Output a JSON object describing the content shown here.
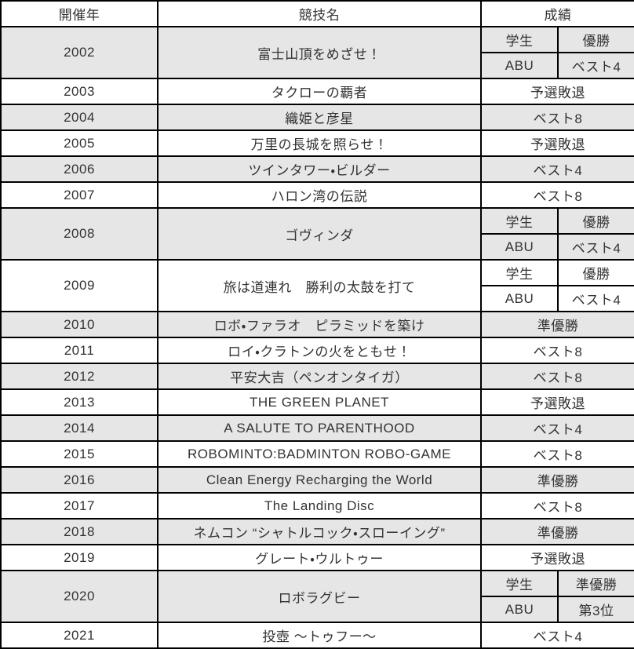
{
  "table": {
    "headers": {
      "year": "開催年",
      "competition": "競技名",
      "result": "成績"
    },
    "rows": [
      {
        "year": "2002",
        "competition": "富士山頂をめざせ！",
        "shaded": true,
        "results": [
          {
            "division": "学生",
            "result": "優勝"
          },
          {
            "division": "ABU",
            "result": "ベスト4"
          }
        ]
      },
      {
        "year": "2003",
        "competition": "タクローの覇者",
        "shaded": false,
        "result": "予選敗退"
      },
      {
        "year": "2004",
        "competition": "織姫と彦星",
        "shaded": true,
        "result": "ベスト8"
      },
      {
        "year": "2005",
        "competition": "万里の長城を照らせ！",
        "shaded": false,
        "result": "予選敗退"
      },
      {
        "year": "2006",
        "competition": "ツインタワー・ビルダー",
        "shaded": true,
        "result": "ベスト4"
      },
      {
        "year": "2007",
        "competition": "ハロン湾の伝説",
        "shaded": false,
        "result": "ベスト8"
      },
      {
        "year": "2008",
        "competition": "ゴヴィンダ",
        "shaded": true,
        "results": [
          {
            "division": "学生",
            "result": "優勝"
          },
          {
            "division": "ABU",
            "result": "ベスト4"
          }
        ]
      },
      {
        "year": "2009",
        "competition": "旅は道連れ　勝利の太鼓を打て",
        "shaded": false,
        "results": [
          {
            "division": "学生",
            "result": "優勝"
          },
          {
            "division": "ABU",
            "result": "ベスト4"
          }
        ]
      },
      {
        "year": "2010",
        "competition": "ロボ・ファラオ　ピラミッドを築け",
        "shaded": true,
        "result": "準優勝"
      },
      {
        "year": "2011",
        "competition": "ロイ・クラトンの火をともせ！",
        "shaded": false,
        "result": "ベスト8"
      },
      {
        "year": "2012",
        "competition": "平安大吉（ペンオンタイガ）",
        "shaded": true,
        "result": "ベスト8"
      },
      {
        "year": "2013",
        "competition": "THE GREEN PLANET",
        "shaded": false,
        "result": "予選敗退"
      },
      {
        "year": "2014",
        "competition": "A SALUTE TO PARENTHOOD",
        "shaded": true,
        "result": "ベスト4"
      },
      {
        "year": "2015",
        "competition": "ROBOMINTO:BADMINTON ROBO-GAME",
        "shaded": false,
        "result": "ベスト8"
      },
      {
        "year": "2016",
        "competition": "Clean Energy Recharging the World",
        "shaded": true,
        "result": "準優勝"
      },
      {
        "year": "2017",
        "competition": "The Landing Disc",
        "shaded": false,
        "result": "ベスト8"
      },
      {
        "year": "2018",
        "competition": "ネムコン “シャトルコック・スローイング”",
        "shaded": true,
        "result": "準優勝"
      },
      {
        "year": "2019",
        "competition": "グレート・ウルトゥー",
        "shaded": false,
        "result": "予選敗退"
      },
      {
        "year": "2020",
        "competition": "ロボラグビー",
        "shaded": true,
        "results": [
          {
            "division": "学生",
            "result": "準優勝"
          },
          {
            "division": "ABU",
            "result": "第3位"
          }
        ]
      },
      {
        "year": "2021",
        "competition": "投壺 ～トゥフー～",
        "shaded": false,
        "result": "ベスト4"
      }
    ],
    "colors": {
      "shaded_row": "#e6e6e6",
      "border": "#000000",
      "text": "#333333"
    }
  }
}
